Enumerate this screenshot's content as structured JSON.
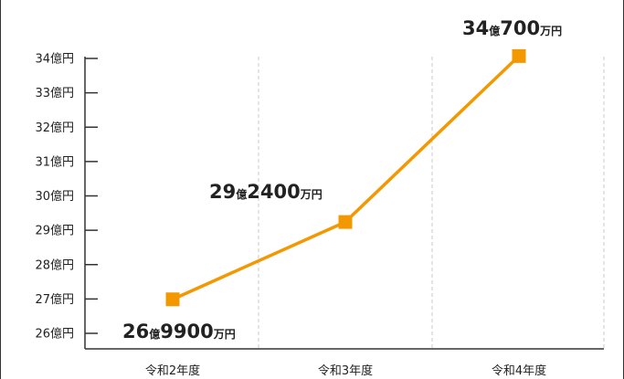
{
  "chart_data": {
    "type": "line",
    "categories": [
      "令和2年度",
      "令和3年度",
      "令和4年度"
    ],
    "series": [
      {
        "values": [
          26.99,
          29.24,
          34.07
        ],
        "color": "#f39800"
      }
    ],
    "data_labels": [
      [
        {
          "t": "26",
          "s": "big"
        },
        {
          "t": "億",
          "s": "small"
        },
        {
          "t": "9900",
          "s": "big"
        },
        {
          "t": "万円",
          "s": "small"
        }
      ],
      [
        {
          "t": "29",
          "s": "big"
        },
        {
          "t": "億",
          "s": "small"
        },
        {
          "t": "2400",
          "s": "big"
        },
        {
          "t": "万円",
          "s": "small"
        }
      ],
      [
        {
          "t": "34",
          "s": "big"
        },
        {
          "t": "億",
          "s": "small"
        },
        {
          "t": "700",
          "s": "big"
        },
        {
          "t": "万円",
          "s": "small"
        }
      ]
    ],
    "y_ticks": [
      26,
      27,
      28,
      29,
      30,
      31,
      32,
      33,
      34
    ],
    "y_tick_labels": [
      "26億円",
      "27億円",
      "28億円",
      "29億円",
      "30億円",
      "31億円",
      "32億円",
      "33億円",
      "34億円"
    ],
    "ylim": [
      26,
      34
    ],
    "grid": "vertical dashed",
    "marker": "square",
    "title": "",
    "xlabel": "",
    "ylabel": ""
  }
}
